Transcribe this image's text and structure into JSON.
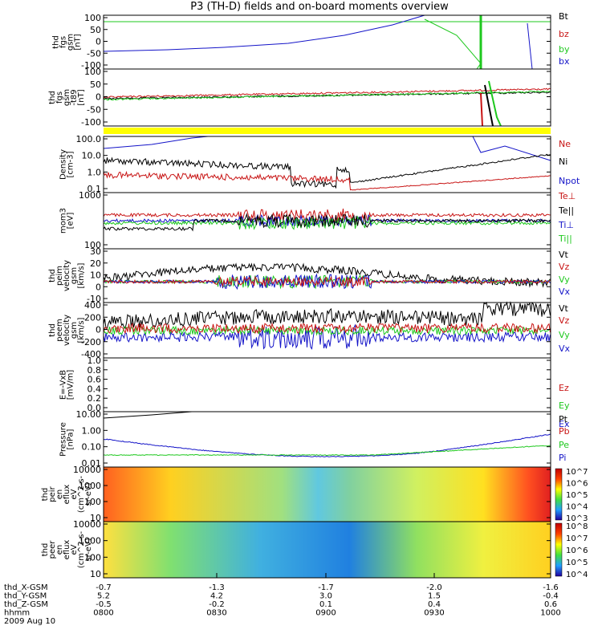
{
  "title": "P3 (TH-D) fields and on-board moments overview",
  "colors": {
    "black": "#000000",
    "red": "#c81414",
    "green": "#1ec81e",
    "blue": "#1414c8",
    "yellow": "#ffff00"
  },
  "chart_data": {
    "type": "line",
    "x_range": [
      "0800",
      "1000"
    ],
    "panels": [
      {
        "id": "p1",
        "ylabel": [
          "thd",
          "fgs",
          "gsm",
          "[nT]"
        ],
        "yticks": [
          "100",
          "50",
          "0",
          "-50",
          "-100"
        ],
        "ylim": [
          -100,
          100
        ],
        "legend": [
          {
            "text": "Bt",
            "color": "black"
          },
          {
            "text": "bz",
            "color": "red"
          },
          {
            "text": "by",
            "color": "green"
          },
          {
            "text": "bx",
            "color": "blue"
          }
        ]
      },
      {
        "id": "p2",
        "ylabel": [
          "thd",
          "fgs",
          "gsm",
          "-t89",
          "[nT]"
        ],
        "yticks": [
          "100",
          "50",
          "0",
          "-50",
          "-100"
        ],
        "ylim": [
          -120,
          120
        ],
        "legend": []
      },
      {
        "id": "p3",
        "ylabel": [
          "Density",
          "[cm-3]"
        ],
        "yticks": [
          "100.0",
          "10.0",
          "1.0",
          "0.1"
        ],
        "scale": "log",
        "legend": [
          {
            "text": "Ne",
            "color": "red"
          },
          {
            "text": "Ni",
            "color": "black"
          },
          {
            "text": "Npot",
            "color": "blue"
          }
        ]
      },
      {
        "id": "p4",
        "ylabel": [
          "mom3",
          "[eV]"
        ],
        "yticks": [
          "1000",
          "100"
        ],
        "scale": "log",
        "legend": [
          {
            "text": "Te⊥",
            "color": "red"
          },
          {
            "text": "Te||",
            "color": "black"
          },
          {
            "text": "Ti⊥",
            "color": "blue"
          },
          {
            "text": "Ti||",
            "color": "green"
          }
        ]
      },
      {
        "id": "p5",
        "ylabel": [
          "thd",
          "peim",
          "velocity",
          "gsm",
          "[km/s]"
        ],
        "yticks": [
          "30",
          "20",
          "10",
          "0",
          "-10"
        ],
        "ylim": [
          -12,
          30
        ],
        "legend": [
          {
            "text": "Vt",
            "color": "black"
          },
          {
            "text": "Vz",
            "color": "red"
          },
          {
            "text": "Vy",
            "color": "green"
          },
          {
            "text": "Vx",
            "color": "blue"
          }
        ]
      },
      {
        "id": "p6",
        "ylabel": [
          "thd",
          "peem",
          "velocity",
          "gsm",
          "[km/s]"
        ],
        "yticks": [
          "400",
          "200",
          "0",
          "-200",
          "-400"
        ],
        "ylim": [
          -420,
          420
        ],
        "legend": [
          {
            "text": "Vt",
            "color": "black"
          },
          {
            "text": "Vz",
            "color": "red"
          },
          {
            "text": "Vy",
            "color": "green"
          },
          {
            "text": "Vx",
            "color": "blue"
          }
        ]
      },
      {
        "id": "p7",
        "ylabel": [
          "E=-VxB",
          "[mV/m]"
        ],
        "yticks": [
          "1.0",
          "0.8",
          "0.6",
          "0.4",
          "0.2",
          "0.0"
        ],
        "ylim": [
          0,
          1
        ],
        "legend": [
          {
            "text": "Ez",
            "color": "red"
          },
          {
            "text": "Ey",
            "color": "green"
          },
          {
            "text": "Ex",
            "color": "blue"
          }
        ]
      },
      {
        "id": "p8",
        "ylabel": [
          "Pressure",
          "[nPa]"
        ],
        "yticks": [
          "10.00",
          "1.00",
          "0.10",
          "0.01"
        ],
        "scale": "log",
        "legend": [
          {
            "text": "Pt",
            "color": "black"
          },
          {
            "text": "Pb",
            "color": "red"
          },
          {
            "text": "Pe",
            "color": "green"
          },
          {
            "text": "Pi",
            "color": "blue"
          }
        ]
      },
      {
        "id": "p9",
        "ylabel": [
          "thd",
          "peir",
          "en",
          "eflux",
          "eV",
          "(cm^2-s-",
          "sr-eV)"
        ],
        "yticks": [
          "10000",
          "1000",
          "100",
          "10"
        ],
        "scale": "log",
        "colorbar": [
          "10^7",
          "10^6",
          "10^5",
          "10^4",
          "10^3"
        ]
      },
      {
        "id": "p10",
        "ylabel": [
          "thd",
          "peer",
          "en",
          "eflux",
          "eV",
          "(cm^2-s-",
          "sr-eV)"
        ],
        "yticks": [
          "10000",
          "1000",
          "100",
          "10"
        ],
        "scale": "log",
        "colorbar": [
          "10^8",
          "10^7",
          "10^6",
          "10^5",
          "10^4"
        ]
      }
    ],
    "xaxis": {
      "labels": [
        "thd_X-GSM",
        "thd_Y-GSM",
        "thd_Z-GSM",
        "hhmm",
        "2009 Aug 10"
      ],
      "columns": [
        {
          "x": "-0.7",
          "y": "5.2",
          "z": "-0.5",
          "t": "0800"
        },
        {
          "x": "-1.3",
          "y": "4.2",
          "z": "-0.2",
          "t": "0830"
        },
        {
          "x": "-1.7",
          "y": "3.0",
          "z": "0.1",
          "t": "0900"
        },
        {
          "x": "-2.0",
          "y": "1.5",
          "z": "0.4",
          "t": "0930"
        },
        {
          "x": "-1.6",
          "y": "-0.4",
          "z": "0.6",
          "t": "1000"
        }
      ]
    }
  }
}
